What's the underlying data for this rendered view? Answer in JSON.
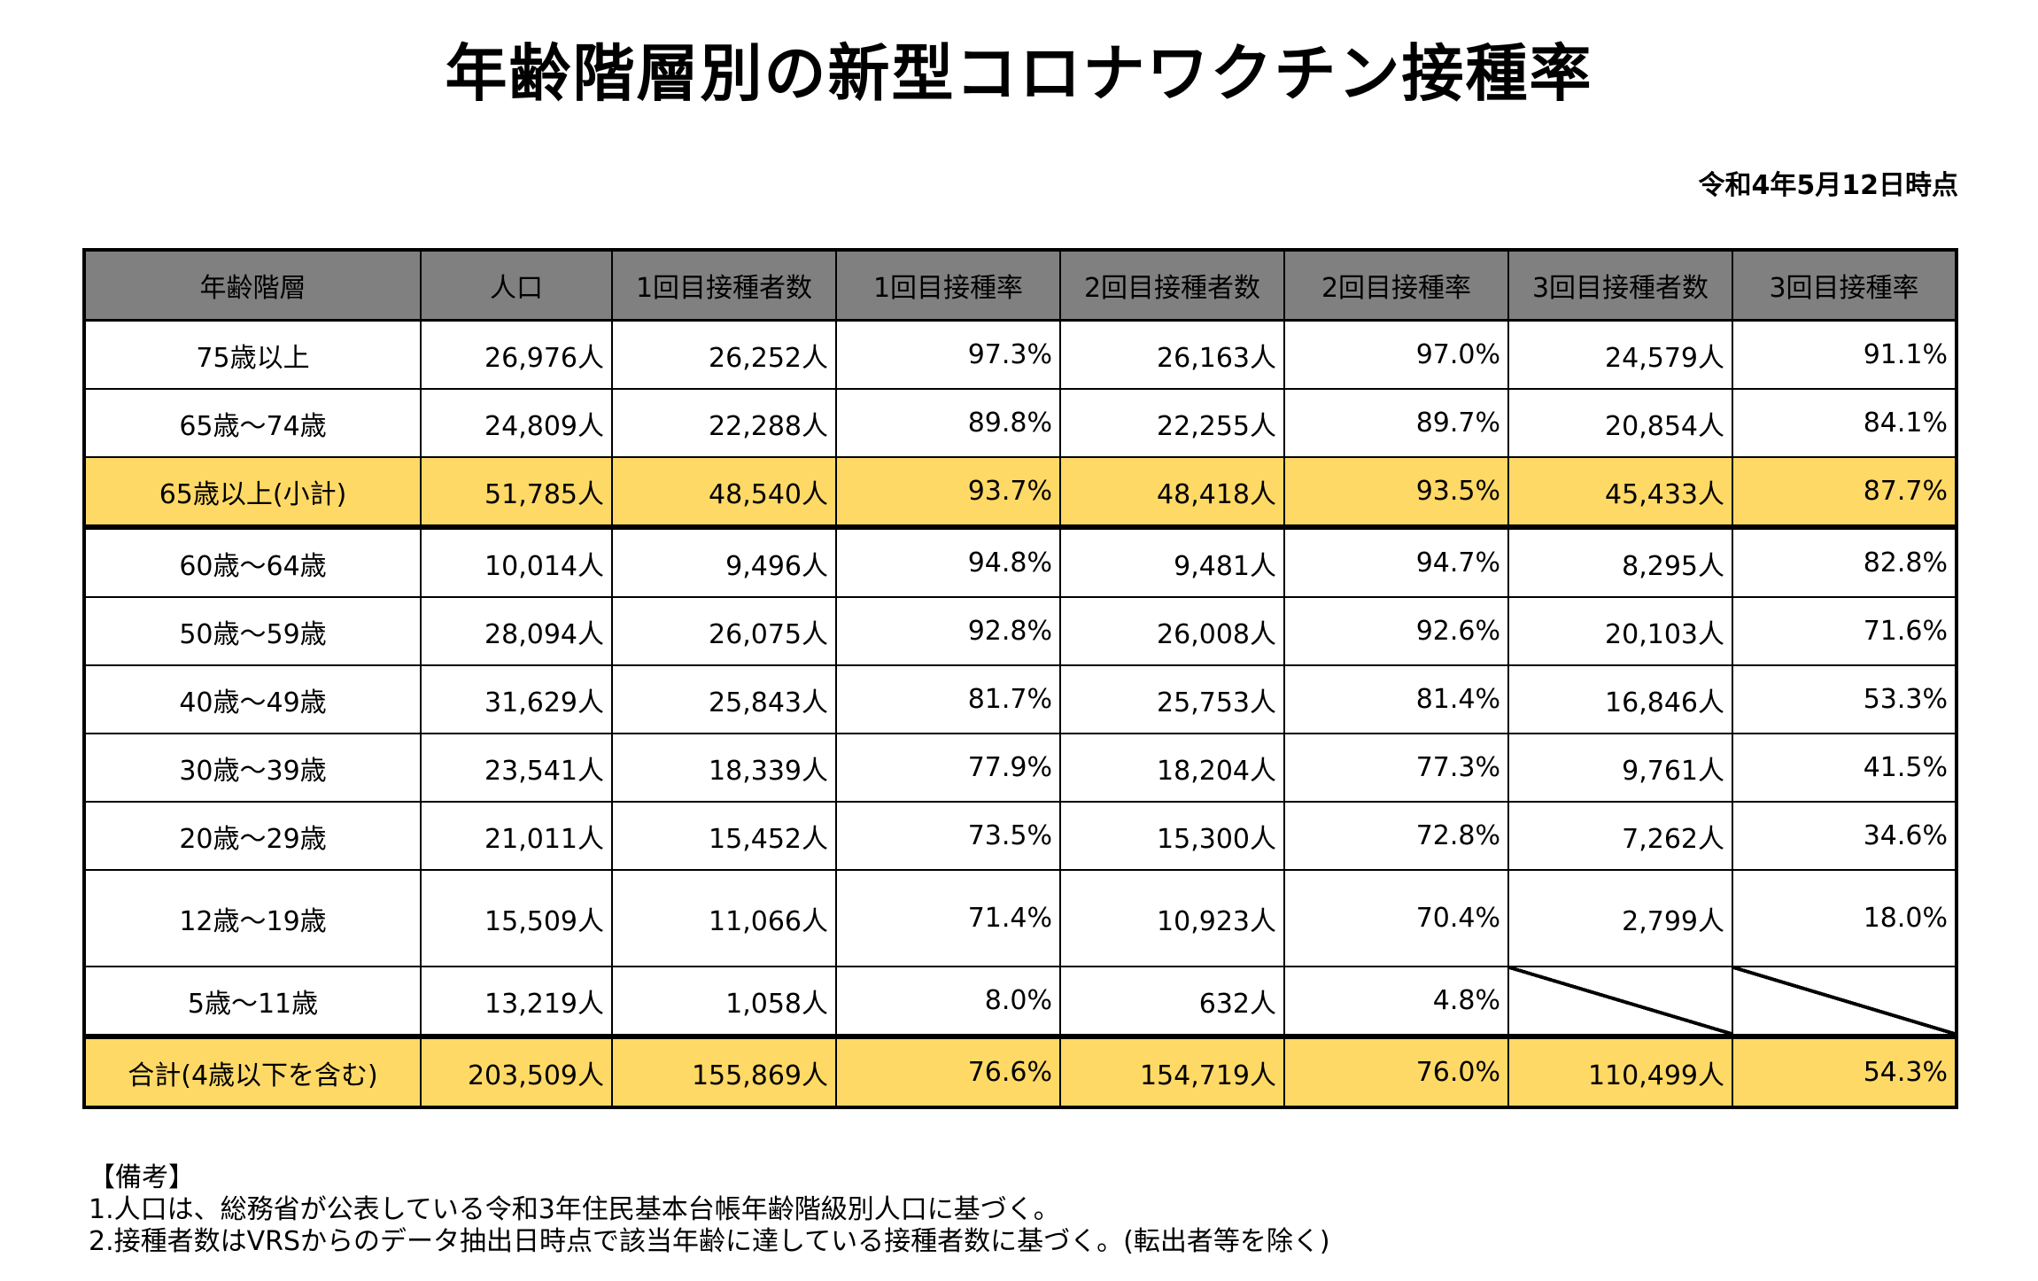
{
  "title": "年齢階層別の新型コロナワクチン接種率",
  "as_of": "令和4年5月12日時点",
  "table": {
    "headers": [
      "年齢階層",
      "人口",
      "1回目接種者数",
      "1回目接種率",
      "2回目接種者数",
      "2回目接種率",
      "3回目接種者数",
      "3回目接種率"
    ],
    "rows": [
      {
        "age": "75歳以上",
        "pop": "26,976人",
        "d1": "26,252人",
        "r1": "97.3%",
        "d2": "26,163人",
        "r2": "97.0%",
        "d3": "24,579人",
        "r3": "91.1%"
      },
      {
        "age": "65歳～74歳",
        "pop": "24,809人",
        "d1": "22,288人",
        "r1": "89.8%",
        "d2": "22,255人",
        "r2": "89.7%",
        "d3": "20,854人",
        "r3": "84.1%"
      },
      {
        "age": "65歳以上(小計)",
        "pop": "51,785人",
        "d1": "48,540人",
        "r1": "93.7%",
        "d2": "48,418人",
        "r2": "93.5%",
        "d3": "45,433人",
        "r3": "87.7%"
      },
      {
        "age": "60歳～64歳",
        "pop": "10,014人",
        "d1": "9,496人",
        "r1": "94.8%",
        "d2": "9,481人",
        "r2": "94.7%",
        "d3": "8,295人",
        "r3": "82.8%"
      },
      {
        "age": "50歳～59歳",
        "pop": "28,094人",
        "d1": "26,075人",
        "r1": "92.8%",
        "d2": "26,008人",
        "r2": "92.6%",
        "d3": "20,103人",
        "r3": "71.6%"
      },
      {
        "age": "40歳～49歳",
        "pop": "31,629人",
        "d1": "25,843人",
        "r1": "81.7%",
        "d2": "25,753人",
        "r2": "81.4%",
        "d3": "16,846人",
        "r3": "53.3%"
      },
      {
        "age": "30歳～39歳",
        "pop": "23,541人",
        "d1": "18,339人",
        "r1": "77.9%",
        "d2": "18,204人",
        "r2": "77.3%",
        "d3": "9,761人",
        "r3": "41.5%"
      },
      {
        "age": "20歳～29歳",
        "pop": "21,011人",
        "d1": "15,452人",
        "r1": "73.5%",
        "d2": "15,300人",
        "r2": "72.8%",
        "d3": "7,262人",
        "r3": "34.6%"
      },
      {
        "age": "12歳～19歳",
        "pop": "15,509人",
        "d1": "11,066人",
        "r1": "71.4%",
        "d2": "10,923人",
        "r2": "70.4%",
        "d3": "2,799人",
        "r3": "18.0%"
      },
      {
        "age": "5歳～11歳",
        "pop": "13,219人",
        "d1": "1,058人",
        "r1": "8.0%",
        "d2": "632人",
        "r2": "4.8%"
      },
      {
        "age": "合計(4歳以下を含む)",
        "pop": "203,509人",
        "d1": "155,869人",
        "r1": "76.6%",
        "d2": "154,719人",
        "r2": "76.0%",
        "d3": "110,499人",
        "r3": "54.3%"
      }
    ]
  },
  "colors": {
    "header_bg": "#808080",
    "highlight_bg": "#ffd966"
  },
  "notes": {
    "heading": "【備考】",
    "lines": [
      "1.人口は、総務省が公表している令和3年住民基本台帳年齢階級別人口に基づく。",
      "2.接種者数はVRSからのデータ抽出日時点で該当年齢に達している接種者数に基づく。(転出者等を除く)"
    ]
  }
}
